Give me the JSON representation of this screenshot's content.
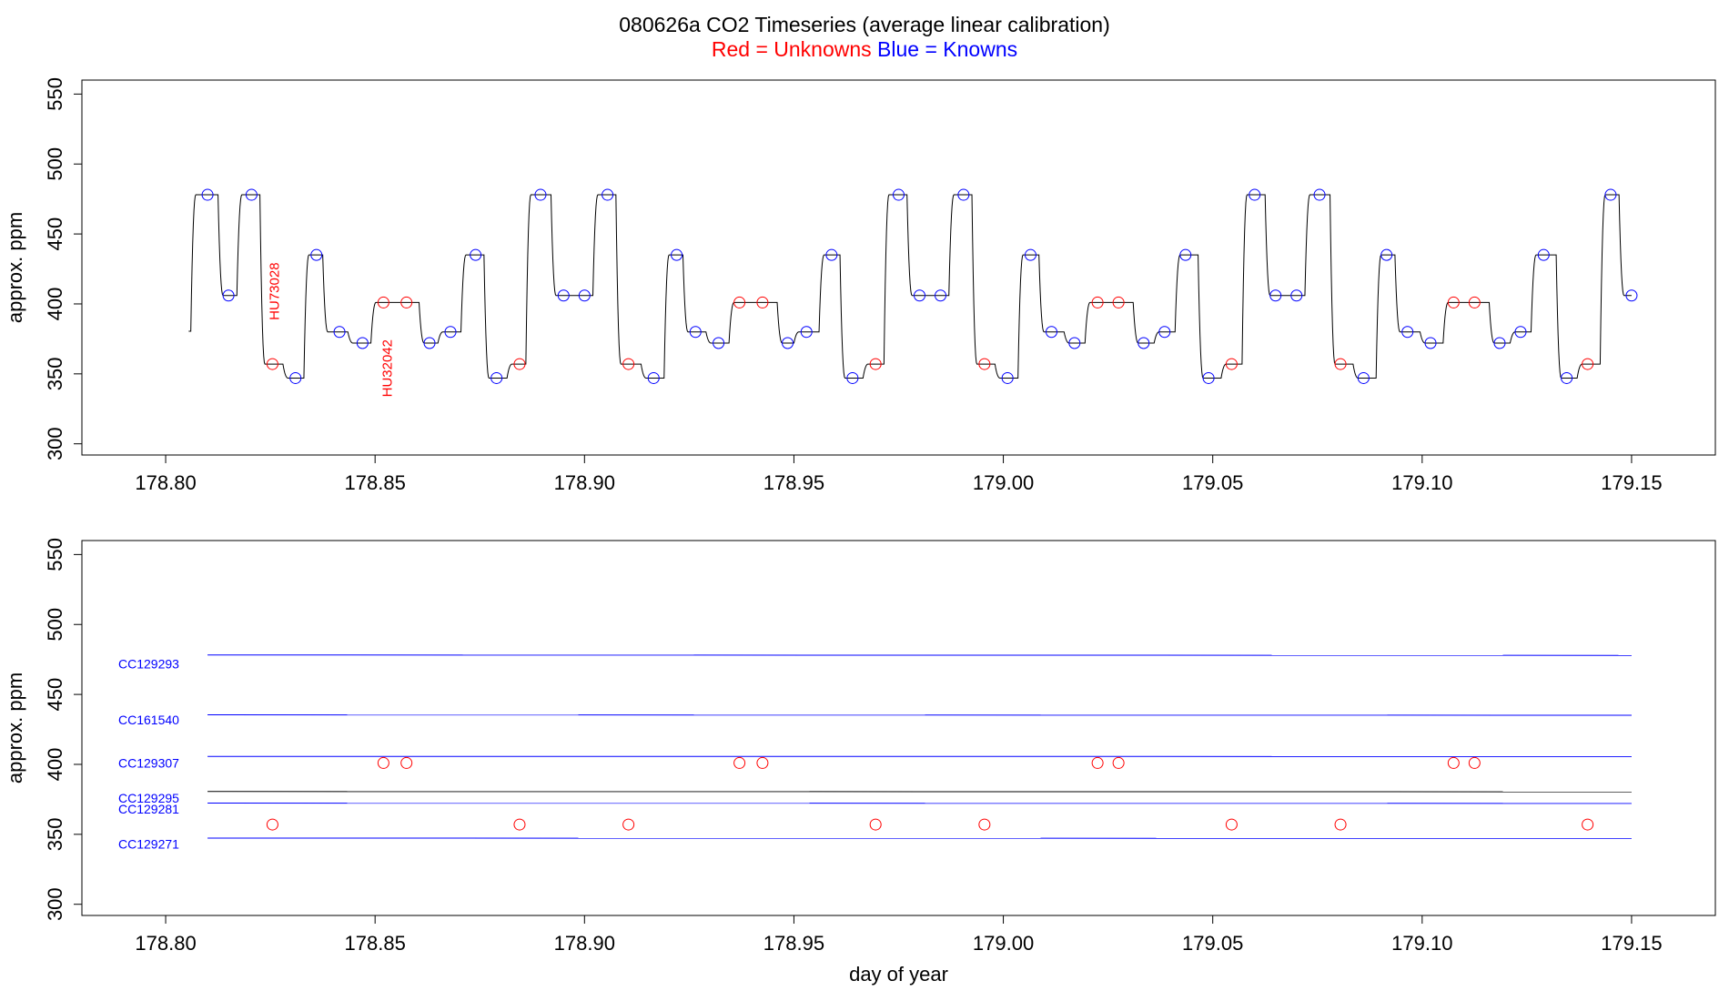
{
  "title": "080626a   CO2 Timeseries (average linear calibration)",
  "legend": {
    "red_label": "Red = Unknowns",
    "blue_label": "Blue = Knowns",
    "red_color": "#ff0000",
    "blue_color": "#0000ff"
  },
  "chart_data": [
    {
      "type": "line",
      "panel": "top",
      "ylabel": "approx. ppm",
      "xlabel": "",
      "xlim": [
        178.78,
        179.17
      ],
      "ylim": [
        292,
        560
      ],
      "x_ticks": [
        "178.80",
        "178.85",
        "178.90",
        "178.95",
        "179.00",
        "179.05",
        "179.10",
        "179.15"
      ],
      "x_tick_values": [
        178.8,
        178.85,
        178.9,
        178.95,
        179.0,
        179.05,
        179.1,
        179.15
      ],
      "y_ticks": [
        "300",
        "350",
        "400",
        "450",
        "500",
        "550"
      ],
      "y_tick_values": [
        300,
        350,
        400,
        450,
        500,
        550
      ],
      "trace_start": [
        178.8055,
        380.5
      ],
      "trace_end": 179.15,
      "steps": [
        [
          178.806,
          478
        ],
        [
          178.8125,
          406
        ],
        [
          178.817,
          478
        ],
        [
          178.8225,
          357
        ],
        [
          178.828,
          347
        ],
        [
          178.833,
          435
        ],
        [
          178.8375,
          380
        ],
        [
          178.8435,
          372
        ],
        [
          178.849,
          401
        ],
        [
          178.8605,
          372
        ],
        [
          178.865,
          380
        ],
        [
          178.8705,
          435
        ],
        [
          178.876,
          347
        ],
        [
          178.8815,
          357
        ],
        [
          178.886,
          478
        ],
        [
          178.892,
          406
        ],
        [
          178.902,
          478
        ],
        [
          178.9075,
          357
        ],
        [
          178.9135,
          347
        ],
        [
          178.919,
          435
        ],
        [
          178.9235,
          380
        ],
        [
          178.929,
          372
        ],
        [
          178.9345,
          401
        ],
        [
          178.946,
          372
        ],
        [
          178.95,
          380
        ],
        [
          178.956,
          435
        ],
        [
          178.961,
          347
        ],
        [
          178.9665,
          357
        ],
        [
          178.9715,
          478
        ],
        [
          178.977,
          406
        ],
        [
          178.987,
          478
        ],
        [
          178.9925,
          357
        ],
        [
          178.998,
          347
        ],
        [
          179.0035,
          435
        ],
        [
          179.0085,
          380
        ],
        [
          179.0145,
          372
        ],
        [
          179.0195,
          401
        ],
        [
          179.031,
          372
        ],
        [
          179.036,
          380
        ],
        [
          179.041,
          435
        ],
        [
          179.0465,
          347
        ],
        [
          179.052,
          357
        ],
        [
          179.057,
          478
        ],
        [
          179.0625,
          406
        ],
        [
          179.072,
          478
        ],
        [
          179.078,
          357
        ],
        [
          179.0835,
          347
        ],
        [
          179.089,
          435
        ],
        [
          179.0935,
          380
        ],
        [
          179.0995,
          372
        ],
        [
          179.105,
          401
        ],
        [
          179.116,
          372
        ],
        [
          179.121,
          380
        ],
        [
          179.126,
          435
        ],
        [
          179.132,
          347
        ],
        [
          179.137,
          357
        ],
        [
          179.1425,
          478
        ],
        [
          179.147,
          406
        ]
      ],
      "unknowns": [
        [
          178.8255,
          357
        ],
        [
          178.852,
          401
        ],
        [
          178.8575,
          401
        ],
        [
          178.8845,
          357
        ],
        [
          178.9105,
          357
        ],
        [
          178.937,
          401
        ],
        [
          178.9425,
          401
        ],
        [
          178.9695,
          357
        ],
        [
          178.9955,
          357
        ],
        [
          179.0225,
          401
        ],
        [
          179.0275,
          401
        ],
        [
          179.0545,
          357
        ],
        [
          179.0805,
          357
        ],
        [
          179.1075,
          401
        ],
        [
          179.1125,
          401
        ],
        [
          179.1395,
          357
        ]
      ],
      "knowns": [
        [
          178.81,
          478
        ],
        [
          178.815,
          406
        ],
        [
          178.8205,
          478
        ],
        [
          178.831,
          347
        ],
        [
          178.836,
          435
        ],
        [
          178.8415,
          380
        ],
        [
          178.847,
          372
        ],
        [
          178.863,
          372
        ],
        [
          178.868,
          380
        ],
        [
          178.874,
          435
        ],
        [
          178.879,
          347
        ],
        [
          178.8895,
          478
        ],
        [
          178.895,
          406
        ],
        [
          178.9,
          406
        ],
        [
          178.9055,
          478
        ],
        [
          178.9165,
          347
        ],
        [
          178.922,
          435
        ],
        [
          178.9265,
          380
        ],
        [
          178.932,
          372
        ],
        [
          178.9485,
          372
        ],
        [
          178.953,
          380
        ],
        [
          178.959,
          435
        ],
        [
          178.964,
          347
        ],
        [
          178.975,
          478
        ],
        [
          178.98,
          406
        ],
        [
          178.985,
          406
        ],
        [
          178.9905,
          478
        ],
        [
          179.001,
          347
        ],
        [
          179.0065,
          435
        ],
        [
          179.0115,
          380
        ],
        [
          179.017,
          372
        ],
        [
          179.0335,
          372
        ],
        [
          179.0385,
          380
        ],
        [
          179.0435,
          435
        ],
        [
          179.049,
          347
        ],
        [
          179.06,
          478
        ],
        [
          179.065,
          406
        ],
        [
          179.07,
          406
        ],
        [
          179.0755,
          478
        ],
        [
          179.086,
          347
        ],
        [
          179.0915,
          435
        ],
        [
          179.0965,
          380
        ],
        [
          179.102,
          372
        ],
        [
          179.1185,
          372
        ],
        [
          179.1235,
          380
        ],
        [
          179.129,
          435
        ],
        [
          179.1345,
          347
        ],
        [
          179.145,
          478
        ],
        [
          179.15,
          406
        ]
      ],
      "annotations": [
        {
          "text": "HU73028",
          "x": 178.8255,
          "y": 409,
          "color": "#ff0000",
          "rotate": -90
        },
        {
          "text": "HU32042",
          "x": 178.8525,
          "y": 354,
          "color": "#ff0000",
          "rotate": -90
        }
      ]
    },
    {
      "type": "line",
      "panel": "bottom",
      "ylabel": "approx. ppm",
      "xlabel": "day of year",
      "xlim": [
        178.78,
        179.17
      ],
      "ylim": [
        292,
        560
      ],
      "x_ticks": [
        "178.80",
        "178.85",
        "178.90",
        "178.95",
        "179.00",
        "179.05",
        "179.10",
        "179.15"
      ],
      "x_tick_values": [
        178.8,
        178.85,
        178.9,
        178.95,
        179.0,
        179.05,
        179.1,
        179.15
      ],
      "y_ticks": [
        "300",
        "350",
        "400",
        "450",
        "500",
        "550"
      ],
      "y_tick_values": [
        300,
        350,
        400,
        450,
        500,
        550
      ],
      "series": [
        {
          "name": "CC129293",
          "x": [
            178.81,
            179.15
          ],
          "y": [
            478.2,
            477.9
          ],
          "color": "#0000ff",
          "label_y": 472
        },
        {
          "name": "CC161540",
          "x": [
            178.81,
            179.15
          ],
          "y": [
            435.4,
            435.1
          ],
          "color": "#0000ff",
          "label_y": 432
        },
        {
          "name": "CC129307",
          "x": [
            178.81,
            179.15
          ],
          "y": [
            405.7,
            405.6
          ],
          "color": "#0000ff",
          "label_y": 401
        },
        {
          "name": "CC129295",
          "x": [
            178.81,
            179.15
          ],
          "y": [
            380.6,
            380.4
          ],
          "color": "#0000ff",
          "label_y": 376
        },
        {
          "name": "CC129281",
          "x": [
            178.81,
            179.15
          ],
          "y": [
            372.3,
            372.1
          ],
          "color": "#0000ff",
          "label_y": 368
        },
        {
          "name": "CC129271",
          "x": [
            178.81,
            179.15
          ],
          "y": [
            347.3,
            347.1
          ],
          "color": "#0000ff",
          "label_y": 343
        }
      ],
      "unknowns": [
        [
          178.8255,
          357
        ],
        [
          178.852,
          401
        ],
        [
          178.8575,
          401
        ],
        [
          178.8845,
          357
        ],
        [
          178.9105,
          357
        ],
        [
          178.937,
          401
        ],
        [
          178.9425,
          401
        ],
        [
          178.9695,
          357
        ],
        [
          178.9955,
          357
        ],
        [
          179.0225,
          401
        ],
        [
          179.0275,
          401
        ],
        [
          179.0545,
          357
        ],
        [
          179.0805,
          357
        ],
        [
          179.1075,
          401
        ],
        [
          179.1125,
          401
        ],
        [
          179.1395,
          357
        ]
      ]
    }
  ]
}
